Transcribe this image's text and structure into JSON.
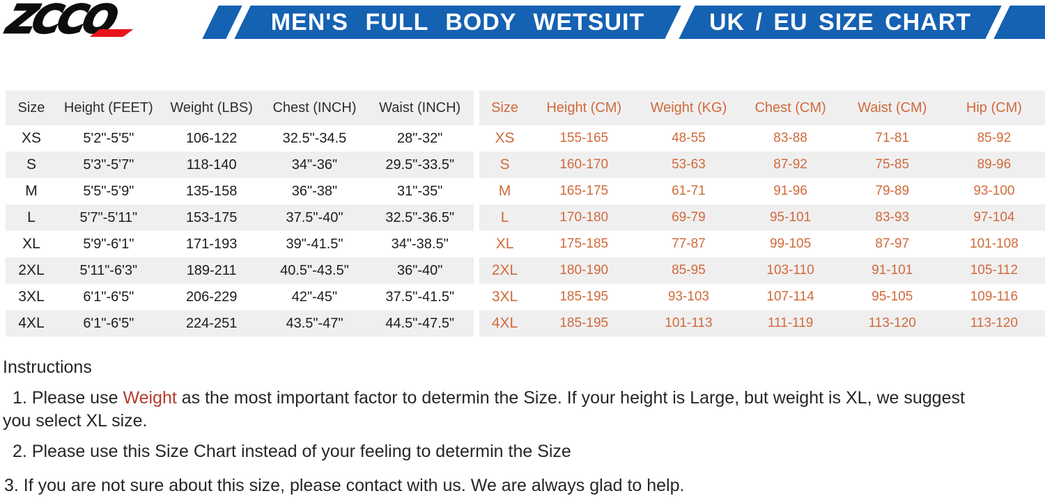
{
  "logo": {
    "text": "ZCCO",
    "accent_color": "#e8131c"
  },
  "banner": {
    "left_title": "MEN'S FULL BODY WETSUIT",
    "right_title": "UK / EU SIZE CHART",
    "background_color": "#1561b2",
    "text_color": "#ffffff"
  },
  "uk_table": {
    "headers": [
      "Size",
      "Height (FEET)",
      "Weight (LBS)",
      "Chest (INCH)",
      "Waist (INCH)"
    ],
    "rows": [
      [
        "XS",
        "5'2\"-5'5\"",
        "106-122",
        "32.5\"-34.5",
        "28\"-32\""
      ],
      [
        "S",
        "5'3\"-5'7\"",
        "118-140",
        "34\"-36\"",
        "29.5\"-33.5\""
      ],
      [
        "M",
        "5'5\"-5'9\"",
        "135-158",
        "36\"-38\"",
        "31\"-35\""
      ],
      [
        "L",
        "5'7\"-5'11\"",
        "153-175",
        "37.5\"-40\"",
        "32.5\"-36.5\""
      ],
      [
        "XL",
        "5'9\"-6'1\"",
        "171-193",
        "39\"-41.5\"",
        "34\"-38.5\""
      ],
      [
        "2XL",
        "5'11\"-6'3\"",
        "189-211",
        "40.5\"-43.5\"",
        "36\"-40\""
      ],
      [
        "3XL",
        "6'1\"-6'5\"",
        "206-229",
        "42\"-45\"",
        "37.5\"-41.5\""
      ],
      [
        "4XL",
        "6'1\"-6'5\"",
        "224-251",
        "43.5\"-47\"",
        "44.5\"-47.5\""
      ]
    ]
  },
  "eu_table": {
    "accent_color": "#cf6a3a",
    "headers": [
      "Size",
      "Height (CM)",
      "Weight (KG)",
      "Chest (CM)",
      "Waist (CM)",
      "Hip (CM)"
    ],
    "rows": [
      [
        "XS",
        "155-165",
        "48-55",
        "83-88",
        "71-81",
        "85-92"
      ],
      [
        "S",
        "160-170",
        "53-63",
        "87-92",
        "75-85",
        "89-96"
      ],
      [
        "M",
        "165-175",
        "61-71",
        "91-96",
        "79-89",
        "93-100"
      ],
      [
        "L",
        "170-180",
        "69-79",
        "95-101",
        "83-93",
        "97-104"
      ],
      [
        "XL",
        "175-185",
        "77-87",
        "99-105",
        "87-97",
        "101-108"
      ],
      [
        "2XL",
        "180-190",
        "85-95",
        "103-110",
        "91-101",
        "105-112"
      ],
      [
        "3XL",
        "185-195",
        "93-103",
        "107-114",
        "95-105",
        "109-116"
      ],
      [
        "4XL",
        "185-195",
        "101-113",
        "111-119",
        "113-120",
        "113-120"
      ]
    ]
  },
  "instructions": {
    "title": "Instructions",
    "highlight_color": "#b23c30",
    "item1_pre": "1. Please use ",
    "item1_highlight": "Weight",
    "item1_post": " as the most important factor to determin the Size. If your height is Large, but weight is XL, we suggest",
    "item1_line2": "you select XL size.",
    "item2": "2. Please use this Size Chart instead of your feeling to determin the Size",
    "item3": "3. If you are not sure about this size, please contact with us. We are always glad to help."
  }
}
